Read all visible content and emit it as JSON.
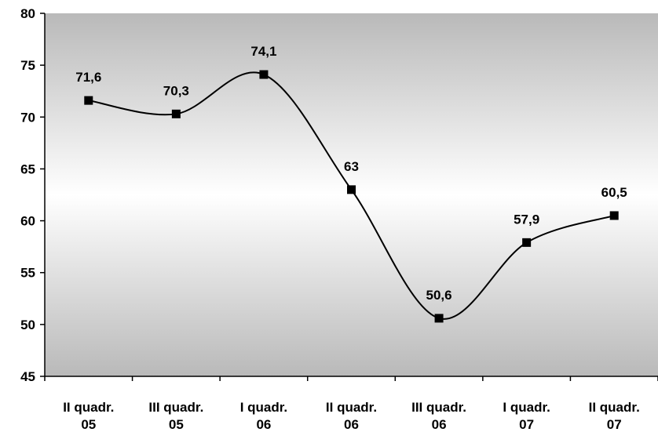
{
  "chart_data": {
    "type": "line",
    "categories": [
      [
        "II quadr.",
        "05"
      ],
      [
        "III quadr.",
        "05"
      ],
      [
        "I quadr.",
        "06"
      ],
      [
        "II quadr.",
        "06"
      ],
      [
        "III quadr.",
        "06"
      ],
      [
        "I quadr.",
        "07"
      ],
      [
        "II quadr.",
        "07"
      ]
    ],
    "values": [
      71.6,
      70.3,
      74.1,
      63,
      50.6,
      57.9,
      60.5
    ],
    "data_labels": [
      "71,6",
      "70,3",
      "74,1",
      "63",
      "50,6",
      "57,9",
      "60,5"
    ],
    "ylim": [
      45,
      80
    ],
    "yticks": [
      45,
      50,
      55,
      60,
      65,
      70,
      75,
      80
    ],
    "title": "",
    "xlabel": "",
    "ylabel": "",
    "grid": false,
    "legend": "none",
    "line_style": "smoothed",
    "marker": "square",
    "colors": {
      "line": "#000000",
      "marker": "#000000",
      "plot_gradient_edge": "#b9b9b9",
      "plot_gradient_center": "#ffffff"
    }
  }
}
